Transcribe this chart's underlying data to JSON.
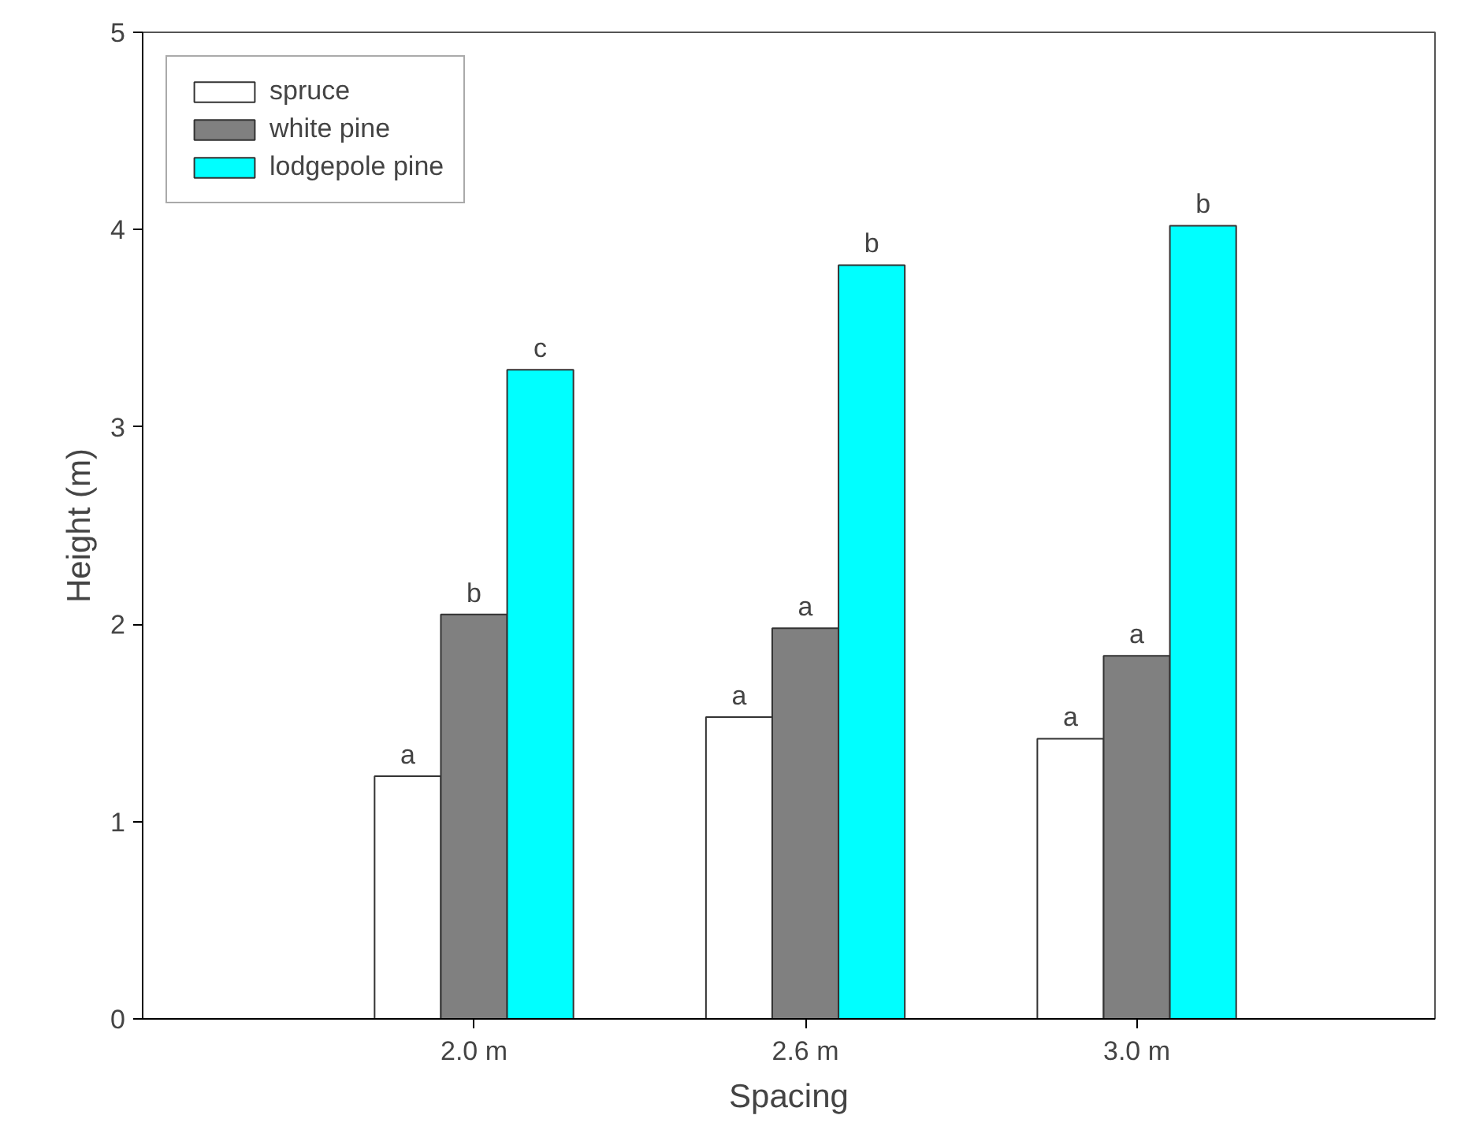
{
  "chart_data": {
    "type": "bar",
    "xlabel": "Spacing",
    "ylabel": "Height (m)",
    "categories": [
      "2.0 m",
      "2.6 m",
      "3.0 m"
    ],
    "series": [
      {
        "name": "spruce",
        "color": "#ffffff",
        "values": [
          1.23,
          1.53,
          1.42
        ],
        "value_labels": [
          "a",
          "a",
          "a"
        ]
      },
      {
        "name": "white pine",
        "color": "#808080",
        "values": [
          2.05,
          1.98,
          1.84
        ],
        "value_labels": [
          "b",
          "a",
          "a"
        ]
      },
      {
        "name": "lodgepole pine",
        "color": "#00ffff",
        "values": [
          3.29,
          3.82,
          4.02
        ],
        "value_labels": [
          "c",
          "b",
          "b"
        ]
      }
    ],
    "ylim": [
      0,
      5
    ],
    "yticks": [
      0,
      1,
      2,
      3,
      4,
      5
    ],
    "grid": false,
    "legend": "top left"
  }
}
